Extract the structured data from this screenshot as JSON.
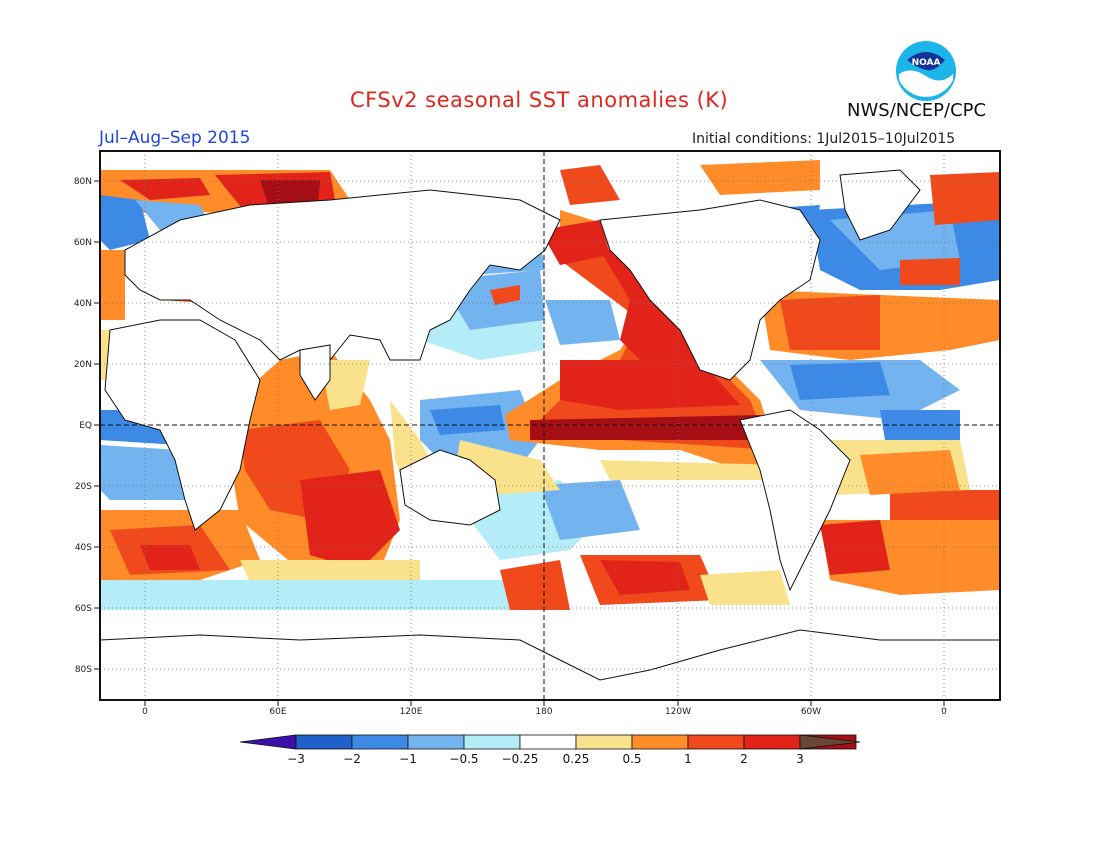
{
  "title": "CFSv2 seasonal SST anomalies (K)",
  "season": "Jul–Aug–Sep 2015",
  "initial_conditions": "Initial conditions: 1Jul2015–10Jul2015",
  "agency": "NWS/NCEP/CPC",
  "logo_text": "NOAA",
  "lat_ticks": [
    "80N",
    "60N",
    "40N",
    "20N",
    "EQ",
    "20S",
    "40S",
    "60S",
    "80S"
  ],
  "lon_ticks": [
    "0",
    "60E",
    "120E",
    "180",
    "120W",
    "60W",
    "0"
  ],
  "colorbar": {
    "labels": [
      "−3",
      "−2",
      "−1",
      "−0.5",
      "−0.25",
      "0.25",
      "0.5",
      "1",
      "2",
      "3"
    ],
    "colors": [
      "#3b0fa8",
      "#1f61c8",
      "#3c8ae6",
      "#73b4f0",
      "#b4ecf8",
      "#ffffff",
      "#fae28c",
      "#ff8c28",
      "#f04a1c",
      "#e1231a",
      "#a50e14",
      "#6b4636"
    ]
  },
  "colors": {
    "title": "#e3261d",
    "season": "#1d46e0",
    "ocean_cool": "#3c8ae6",
    "ocean_warm": "#f04a1c"
  }
}
